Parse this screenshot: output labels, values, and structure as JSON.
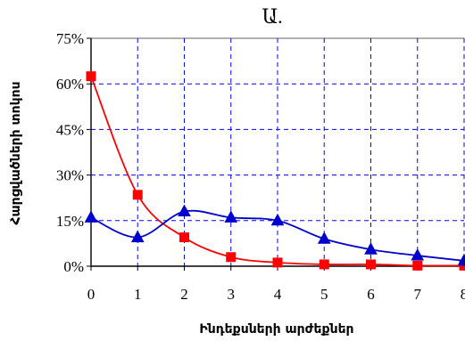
{
  "chart_data": {
    "type": "line",
    "title": "Ա.",
    "xlabel": "Ինդեքսների արժեքներ",
    "ylabel": "Հարցվածների տոկոս",
    "x": [
      0,
      1,
      2,
      3,
      4,
      5,
      6,
      7,
      8
    ],
    "x_tick_labels": [
      "0",
      "1",
      "2",
      "3",
      "4",
      "5",
      "6",
      "7",
      "8"
    ],
    "y_tick_labels": [
      "0%",
      "15%",
      "30%",
      "45%",
      "60%",
      "75%"
    ],
    "xlim": [
      0,
      8
    ],
    "ylim": [
      0,
      75
    ],
    "grid": true,
    "series": [
      {
        "color": "#ff0000",
        "marker": "square",
        "values": [
          62.5,
          23.5,
          9.5,
          3.0,
          1.2,
          0.6,
          0.6,
          0.2,
          0.2
        ]
      },
      {
        "color": "#0000cc",
        "marker": "triangle",
        "values": [
          16.0,
          9.5,
          18.0,
          16.0,
          15.0,
          9.0,
          5.5,
          3.5,
          1.8
        ]
      }
    ]
  }
}
